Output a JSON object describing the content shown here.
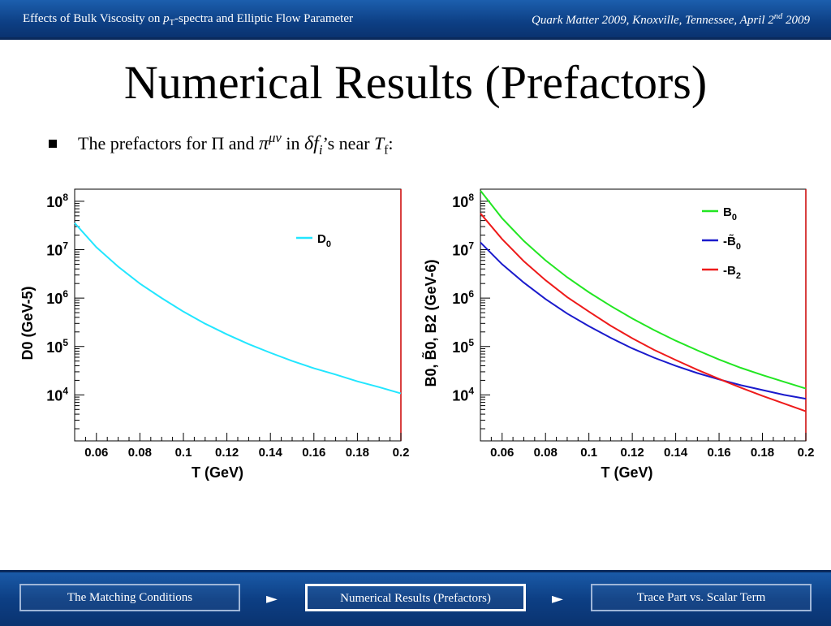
{
  "header": {
    "left_pre": "Effects of Bulk Viscosity on ",
    "left_p": "p",
    "left_sub": "T",
    "left_post": "-spectra and Elliptic Flow Parameter",
    "right_main": "Quark Matter 2009, Knoxville, Tennessee, April 2",
    "right_sup": "nd",
    "right_year": " 2009"
  },
  "title": "Numerical Results (Prefactors)",
  "bullet": {
    "text1": "The prefactors for ",
    "pi_cap": "Π",
    "text2": " and ",
    "pi_small": "π",
    "pi_sup": "μν",
    "text3": " in ",
    "delta": "δ",
    "f": "f",
    "f_sub": "i",
    "text4": "’s near ",
    "T": "T",
    "T_sub": "f",
    "colon": ":"
  },
  "chart_data": [
    {
      "type": "line",
      "xlabel": "T (GeV)",
      "ylabel": "D0 (GeV-5)",
      "xlim": [
        0.05,
        0.2
      ],
      "ylim_log10": [
        3.05,
        8.25
      ],
      "log_y": true,
      "xticks": [
        "0.06",
        "0.08",
        "0.1",
        "0.12",
        "0.14",
        "0.16",
        "0.18",
        "0.2"
      ],
      "yticks": [
        {
          "base": "10",
          "exp": "4",
          "log": 4
        },
        {
          "base": "10",
          "exp": "5",
          "log": 5
        },
        {
          "base": "10",
          "exp": "6",
          "log": 6
        },
        {
          "base": "10",
          "exp": "7",
          "log": 7
        },
        {
          "base": "10",
          "exp": "8",
          "log": 8
        }
      ],
      "legend": [
        {
          "name": "D",
          "sub": "0",
          "color": "#22e6ff"
        }
      ],
      "series": [
        {
          "name": "D0",
          "color": "#22e6ff",
          "x": [
            0.05,
            0.06,
            0.07,
            0.08,
            0.09,
            0.1,
            0.11,
            0.12,
            0.13,
            0.14,
            0.15,
            0.16,
            0.17,
            0.18,
            0.19,
            0.2
          ],
          "log10y": [
            7.55,
            7.05,
            6.65,
            6.3,
            6.0,
            5.72,
            5.47,
            5.25,
            5.05,
            4.87,
            4.7,
            4.55,
            4.42,
            4.28,
            4.16,
            4.03
          ]
        }
      ]
    },
    {
      "type": "line",
      "xlabel": "T (GeV)",
      "ylabel": "B0, B̃0, B2 (GeV-6)",
      "xlim": [
        0.05,
        0.2
      ],
      "ylim_log10": [
        3.05,
        8.25
      ],
      "log_y": true,
      "xticks": [
        "0.06",
        "0.08",
        "0.1",
        "0.12",
        "0.14",
        "0.16",
        "0.18",
        "0.2"
      ],
      "yticks": [
        {
          "base": "10",
          "exp": "4",
          "log": 4
        },
        {
          "base": "10",
          "exp": "5",
          "log": 5
        },
        {
          "base": "10",
          "exp": "6",
          "log": 6
        },
        {
          "base": "10",
          "exp": "7",
          "log": 7
        },
        {
          "base": "10",
          "exp": "8",
          "log": 8
        }
      ],
      "legend": [
        {
          "name": "B",
          "sub": "0",
          "color": "#22e622"
        },
        {
          "name": "-B̃",
          "sub": "0",
          "color": "#1a1acc"
        },
        {
          "name": "-B",
          "sub": "2",
          "color": "#ee1a1a"
        }
      ],
      "series": [
        {
          "name": "B0",
          "color": "#22e622",
          "x": [
            0.05,
            0.06,
            0.07,
            0.08,
            0.09,
            0.1,
            0.11,
            0.12,
            0.13,
            0.14,
            0.15,
            0.16,
            0.17,
            0.18,
            0.19,
            0.2
          ],
          "log10y": [
            8.22,
            7.65,
            7.18,
            6.78,
            6.43,
            6.12,
            5.84,
            5.58,
            5.34,
            5.12,
            4.92,
            4.73,
            4.56,
            4.41,
            4.27,
            4.13
          ]
        },
        {
          "name": "-B̃0",
          "color": "#1a1acc",
          "x": [
            0.05,
            0.06,
            0.07,
            0.08,
            0.09,
            0.1,
            0.11,
            0.12,
            0.13,
            0.14,
            0.15,
            0.16,
            0.17,
            0.18,
            0.19,
            0.2
          ],
          "log10y": [
            7.15,
            6.7,
            6.32,
            5.98,
            5.68,
            5.42,
            5.18,
            4.96,
            4.77,
            4.6,
            4.45,
            4.32,
            4.2,
            4.1,
            4.0,
            3.92
          ]
        },
        {
          "name": "-B2",
          "color": "#ee1a1a",
          "x": [
            0.05,
            0.06,
            0.07,
            0.08,
            0.09,
            0.1,
            0.11,
            0.12,
            0.13,
            0.14,
            0.15,
            0.16,
            0.17,
            0.18,
            0.19,
            0.2
          ],
          "log10y": [
            7.75,
            7.22,
            6.76,
            6.37,
            6.02,
            5.72,
            5.43,
            5.17,
            4.93,
            4.72,
            4.52,
            4.33,
            4.15,
            3.98,
            3.82,
            3.66
          ]
        }
      ]
    }
  ],
  "nav": {
    "prev": "The Matching Conditions",
    "current": "Numerical Results (Prefactors)",
    "next": "Trace Part vs. Scalar Term",
    "arrow": "►"
  }
}
